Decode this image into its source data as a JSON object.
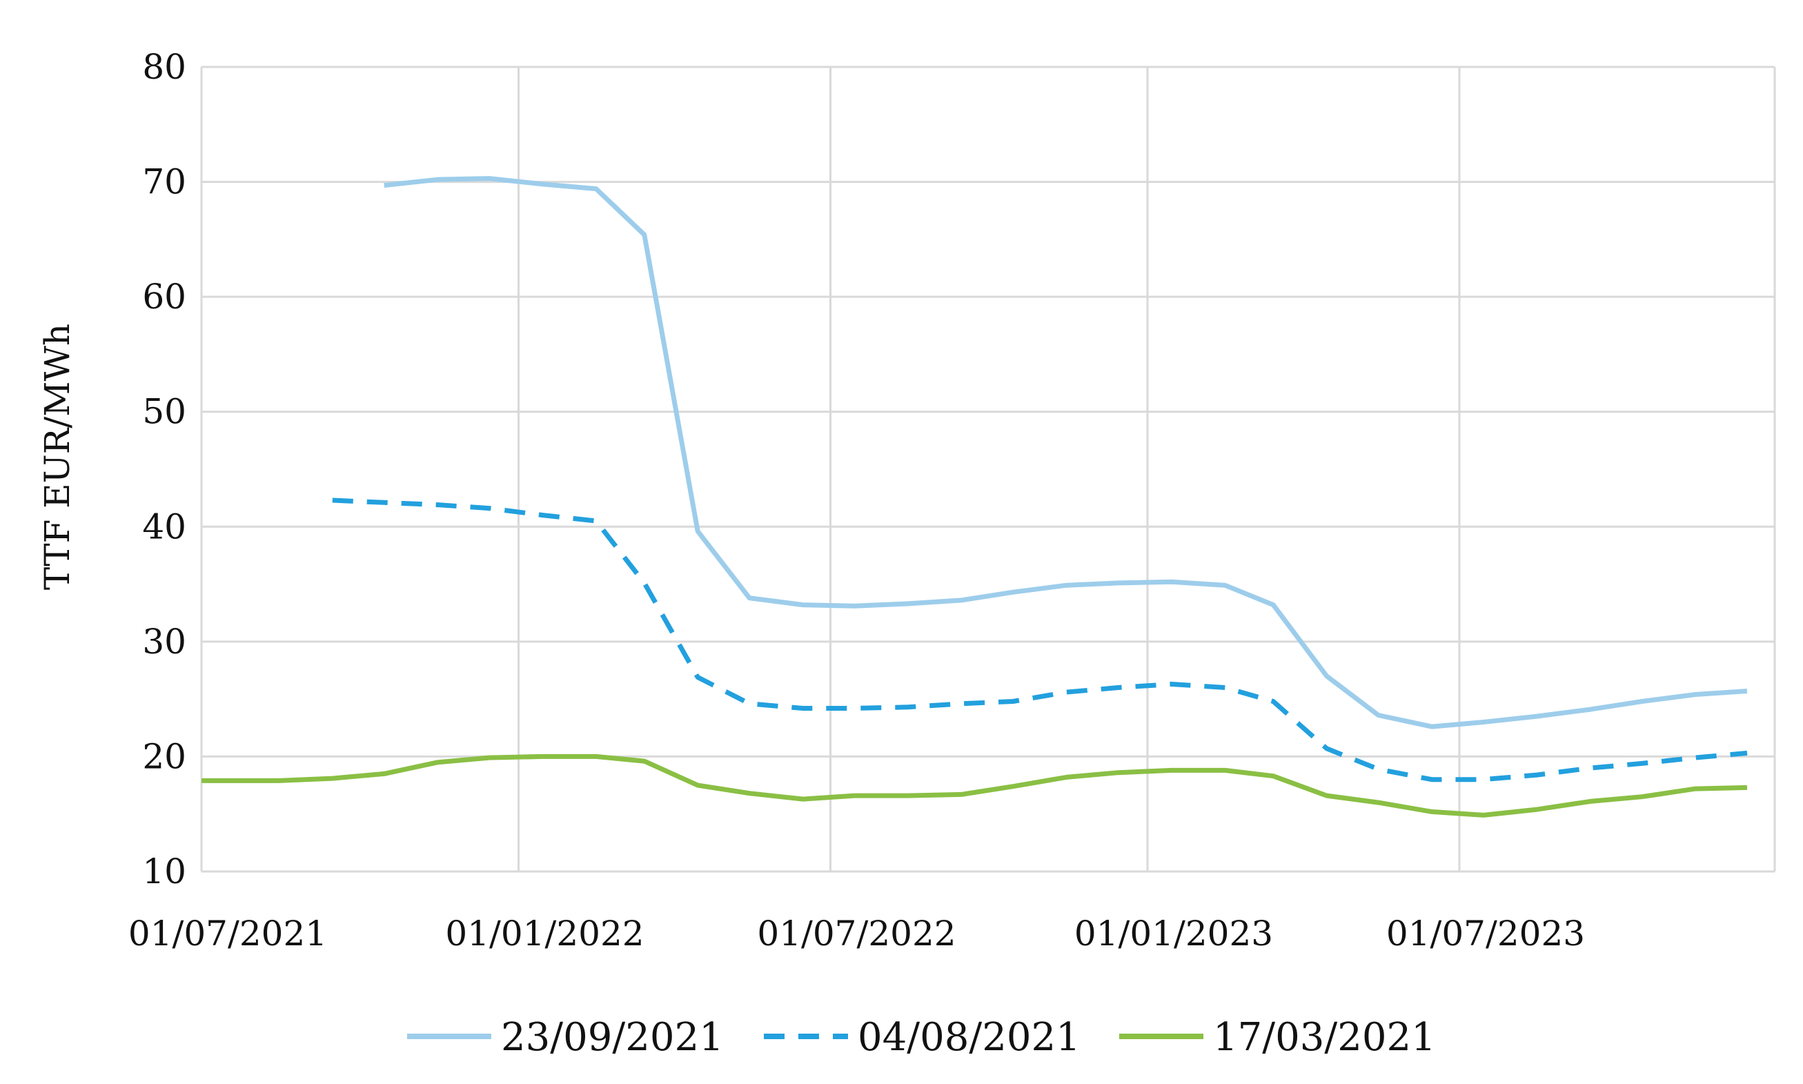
{
  "chart_data": {
    "type": "line",
    "title": "",
    "xlabel": "",
    "ylabel": "TTF EUR/MWh",
    "ylim": [
      10,
      80
    ],
    "yticks": [
      10,
      20,
      30,
      40,
      50,
      60,
      70,
      80
    ],
    "xlim": [
      "2021-07-01",
      "2023-12-31"
    ],
    "xticks": [
      {
        "date": "2021-07-01",
        "label": "01/07/2021"
      },
      {
        "date": "2022-01-01",
        "label": "01/01/2022"
      },
      {
        "date": "2022-07-01",
        "label": "01/07/2022"
      },
      {
        "date": "2023-01-01",
        "label": "01/01/2023"
      },
      {
        "date": "2023-07-01",
        "label": "01/07/2023"
      }
    ],
    "grid": true,
    "legend_position": "bottom",
    "series": [
      {
        "name": "23/09/2021",
        "color": "#9dcdeb",
        "dash": "solid",
        "x": [
          "2021-10-15",
          "2021-11-15",
          "2021-12-15",
          "2022-01-15",
          "2022-02-15",
          "2022-03-15",
          "2022-04-15",
          "2022-05-15",
          "2022-06-15",
          "2022-07-15",
          "2022-08-15",
          "2022-09-15",
          "2022-10-15",
          "2022-11-15",
          "2022-12-15",
          "2023-01-15",
          "2023-02-15",
          "2023-03-15",
          "2023-04-15",
          "2023-05-15",
          "2023-06-15",
          "2023-07-15",
          "2023-08-15",
          "2023-09-15",
          "2023-10-15",
          "2023-11-15",
          "2023-12-15"
        ],
        "y": [
          69.7,
          70.2,
          70.3,
          69.8,
          69.4,
          65.4,
          39.6,
          33.8,
          33.2,
          33.1,
          33.3,
          33.6,
          34.3,
          34.9,
          35.1,
          35.2,
          34.9,
          33.2,
          27.0,
          23.6,
          22.6,
          23.0,
          23.5,
          24.1,
          24.8,
          25.4,
          25.7
        ]
      },
      {
        "name": "04/08/2021",
        "color": "#22a0de",
        "dash": "dashed",
        "x": [
          "2021-09-15",
          "2021-10-15",
          "2021-11-15",
          "2021-12-15",
          "2022-01-15",
          "2022-02-15",
          "2022-03-15",
          "2022-04-15",
          "2022-05-15",
          "2022-06-15",
          "2022-07-15",
          "2022-08-15",
          "2022-09-15",
          "2022-10-15",
          "2022-11-15",
          "2022-12-15",
          "2023-01-15",
          "2023-02-15",
          "2023-03-15",
          "2023-04-15",
          "2023-05-15",
          "2023-06-15",
          "2023-07-15",
          "2023-08-15",
          "2023-09-15",
          "2023-10-15",
          "2023-11-15",
          "2023-12-15"
        ],
        "y": [
          42.3,
          42.1,
          41.9,
          41.6,
          41.0,
          40.5,
          35.1,
          26.9,
          24.6,
          24.2,
          24.2,
          24.3,
          24.6,
          24.8,
          25.6,
          26.0,
          26.3,
          26.0,
          24.8,
          20.7,
          18.9,
          18.0,
          18.0,
          18.4,
          19.0,
          19.4,
          19.9,
          20.3
        ]
      },
      {
        "name": "17/03/2021",
        "color": "#8abf44",
        "dash": "solid",
        "x": [
          "2021-07-01",
          "2021-07-15",
          "2021-08-15",
          "2021-09-15",
          "2021-10-15",
          "2021-11-15",
          "2021-12-15",
          "2022-01-15",
          "2022-02-15",
          "2022-03-15",
          "2022-04-15",
          "2022-05-15",
          "2022-06-15",
          "2022-07-15",
          "2022-08-15",
          "2022-09-15",
          "2022-10-15",
          "2022-11-15",
          "2022-12-15",
          "2023-01-15",
          "2023-02-15",
          "2023-03-15",
          "2023-04-15",
          "2023-05-15",
          "2023-06-15",
          "2023-07-15",
          "2023-08-15",
          "2023-09-15",
          "2023-10-15",
          "2023-11-15",
          "2023-12-15"
        ],
        "y": [
          17.9,
          17.9,
          17.9,
          18.1,
          18.5,
          19.5,
          19.9,
          20.0,
          20.0,
          19.6,
          17.5,
          16.8,
          16.3,
          16.6,
          16.6,
          16.7,
          17.4,
          18.2,
          18.6,
          18.8,
          18.8,
          18.3,
          16.6,
          16.0,
          15.2,
          14.9,
          15.4,
          16.1,
          16.5,
          17.2,
          17.3
        ]
      }
    ]
  }
}
